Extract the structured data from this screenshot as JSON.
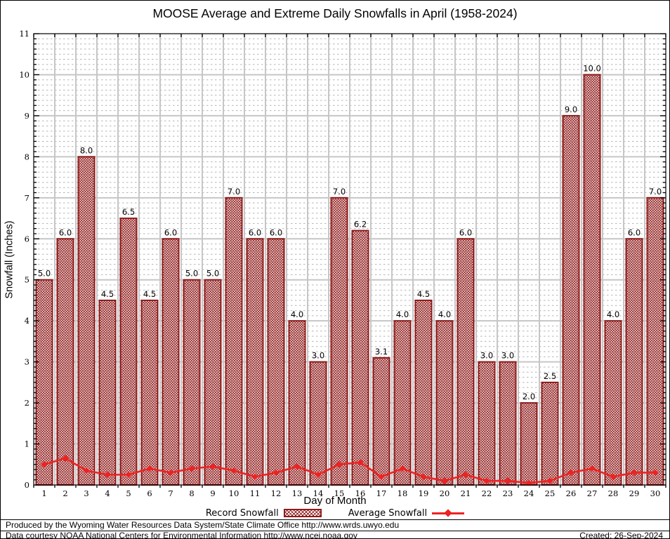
{
  "title": "MOOSE Average and Extreme Daily Snowfalls in April (1958-2024)",
  "legend": {
    "record_label": "Record Snowfall",
    "average_label": "Average Snowfall"
  },
  "footer": {
    "line1": "Produced by the Wyoming Water Resources Data System/State Climate Office http://www.wrds.uwyo.edu",
    "line2": "Data courtesy NOAA National Centers for Environmental Information http://www.ncei.noaa.gov",
    "created": "Created: 26-Sep-2024"
  },
  "colors": {
    "bar": "#8f1a1a",
    "line": "#ee2222",
    "grid_major": "#c6c6c6",
    "grid_minor": "#b4b4b4",
    "frame": "#000000"
  },
  "chart_data": {
    "type": "bar",
    "title": "MOOSE Average and Extreme Daily Snowfalls in April (1958-2024)",
    "xlabel": "Day of Month",
    "ylabel": "Snowfall (Inches)",
    "ylim": [
      0,
      11
    ],
    "yticks": [
      0,
      1,
      2,
      3,
      4,
      5,
      6,
      7,
      8,
      9,
      10,
      11
    ],
    "y_minor_subdivisions": 8,
    "grid": true,
    "legend_position": "bottom",
    "x": [
      1,
      2,
      3,
      4,
      5,
      6,
      7,
      8,
      9,
      10,
      11,
      12,
      13,
      14,
      15,
      16,
      17,
      18,
      19,
      20,
      21,
      22,
      23,
      24,
      25,
      26,
      27,
      28,
      29,
      30
    ],
    "series": [
      {
        "name": "Record Snowfall",
        "type": "bar",
        "values": [
          5.0,
          6.0,
          8.0,
          4.5,
          6.5,
          4.5,
          6.0,
          5.0,
          5.0,
          7.0,
          6.0,
          6.0,
          4.0,
          3.0,
          7.0,
          6.2,
          3.1,
          4.0,
          4.5,
          4.0,
          6.0,
          3.0,
          3.0,
          2.0,
          2.5,
          9.0,
          10.0,
          4.0,
          6.0,
          7.0
        ]
      },
      {
        "name": "Average Snowfall",
        "type": "line",
        "values": [
          0.5,
          0.65,
          0.35,
          0.25,
          0.25,
          0.4,
          0.3,
          0.4,
          0.45,
          0.35,
          0.2,
          0.3,
          0.45,
          0.25,
          0.5,
          0.55,
          0.2,
          0.4,
          0.2,
          0.1,
          0.25,
          0.1,
          0.1,
          0.05,
          0.1,
          0.3,
          0.4,
          0.2,
          0.3,
          0.3
        ]
      }
    ]
  }
}
